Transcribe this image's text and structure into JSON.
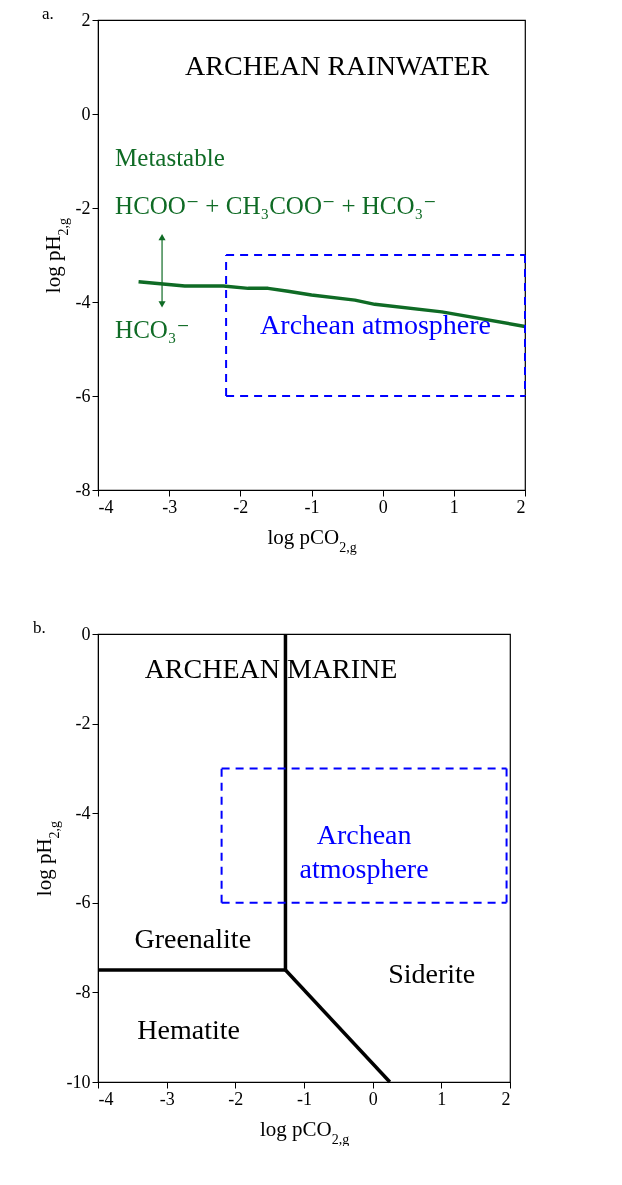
{
  "chart_data": [
    {
      "type": "line",
      "title": "a.",
      "xlabel": "log pCO$_{2,g}$",
      "ylabel": "log pH$_{2,g}$",
      "xlim": [
        -4,
        2
      ],
      "ylim": [
        -8,
        2
      ],
      "xticks": [
        -4,
        -3,
        -2,
        -1,
        0,
        1,
        2
      ],
      "yticks": [
        -8,
        -6,
        -4,
        -2,
        0,
        2
      ],
      "grid": false,
      "annotations": [
        "ARCHEAN RAINWATER",
        "Metastable",
        "HCOO⁻ + CH₃COO⁻ + HCO₃⁻",
        "HCO₃⁻"
      ],
      "series": [
        {
          "type": "line",
          "color": "#0f6b25",
          "line_style": "solid",
          "x": [
            -3.43,
            -2.78,
            -2.24,
            -1.89,
            -1.61,
            -1.33,
            -1.0,
            -0.39,
            -0.11,
            0.83,
            2.0
          ],
          "values": [
            -3.57,
            -3.66,
            -3.66,
            -3.71,
            -3.71,
            -3.77,
            -3.85,
            -3.96,
            -4.05,
            -4.21,
            -4.52
          ]
        },
        {
          "type": "line",
          "name": "Archean atmosphere",
          "color": "#0000ff",
          "line_style": "dashed",
          "x": [
            -2.2,
            2
          ],
          "values": [
            -3,
            -3
          ]
        },
        {
          "type": "line",
          "color": "#0000ff",
          "line_style": "dashed",
          "x": [
            2,
            2
          ],
          "values": [
            -3,
            -6
          ]
        },
        {
          "type": "line",
          "color": "#0000ff",
          "line_style": "dashed",
          "x": [
            -2.2,
            2
          ],
          "values": [
            -6,
            -6
          ]
        },
        {
          "type": "line",
          "color": "#0000ff",
          "line_style": "dashed",
          "x": [
            -2.2,
            -2.2
          ],
          "values": [
            -6,
            -3
          ]
        }
      ]
    },
    {
      "type": "line",
      "title": "b.",
      "xlabel": "log pCO$_{2,g}$",
      "ylabel": "log pH$_{2,g}$",
      "xlim": [
        -4,
        2
      ],
      "ylim": [
        -10,
        0
      ],
      "xticks": [
        -4,
        -3,
        -2,
        -1,
        0,
        1,
        2
      ],
      "yticks": [
        -10,
        -8,
        -6,
        -4,
        -2,
        0
      ],
      "grid": false,
      "annotations": [
        "ARCHEAN MARINE",
        "Greenalite",
        "Siderite",
        "Hematite"
      ],
      "series": [
        {
          "type": "line",
          "color": "#000000",
          "line_style": "solid",
          "x": [
            -1.27,
            -1.27
          ],
          "values": [
            0,
            -7.5
          ]
        },
        {
          "type": "line",
          "color": "#000000",
          "line_style": "solid",
          "x": [
            -4,
            -1.27
          ],
          "values": [
            -7.5,
            -7.5
          ]
        },
        {
          "type": "line",
          "color": "#000000",
          "line_style": "solid",
          "x": [
            -1.27,
            0.25
          ],
          "values": [
            -7.5,
            -10
          ]
        },
        {
          "type": "line",
          "name": "Archean atmosphere",
          "color": "#0000ff",
          "line_style": "dashed",
          "x": [
            -2.2,
            1.95
          ],
          "values": [
            -3,
            -3
          ]
        },
        {
          "type": "line",
          "color": "#0000ff",
          "line_style": "dashed",
          "x": [
            1.95,
            1.95
          ],
          "values": [
            -3,
            -6
          ]
        },
        {
          "type": "line",
          "color": "#0000ff",
          "line_style": "dashed",
          "x": [
            -2.2,
            1.95
          ],
          "values": [
            -6,
            -6
          ]
        },
        {
          "type": "line",
          "color": "#0000ff",
          "line_style": "dashed",
          "x": [
            -2.2,
            -2.2
          ],
          "values": [
            -6,
            -3
          ]
        }
      ]
    }
  ]
}
